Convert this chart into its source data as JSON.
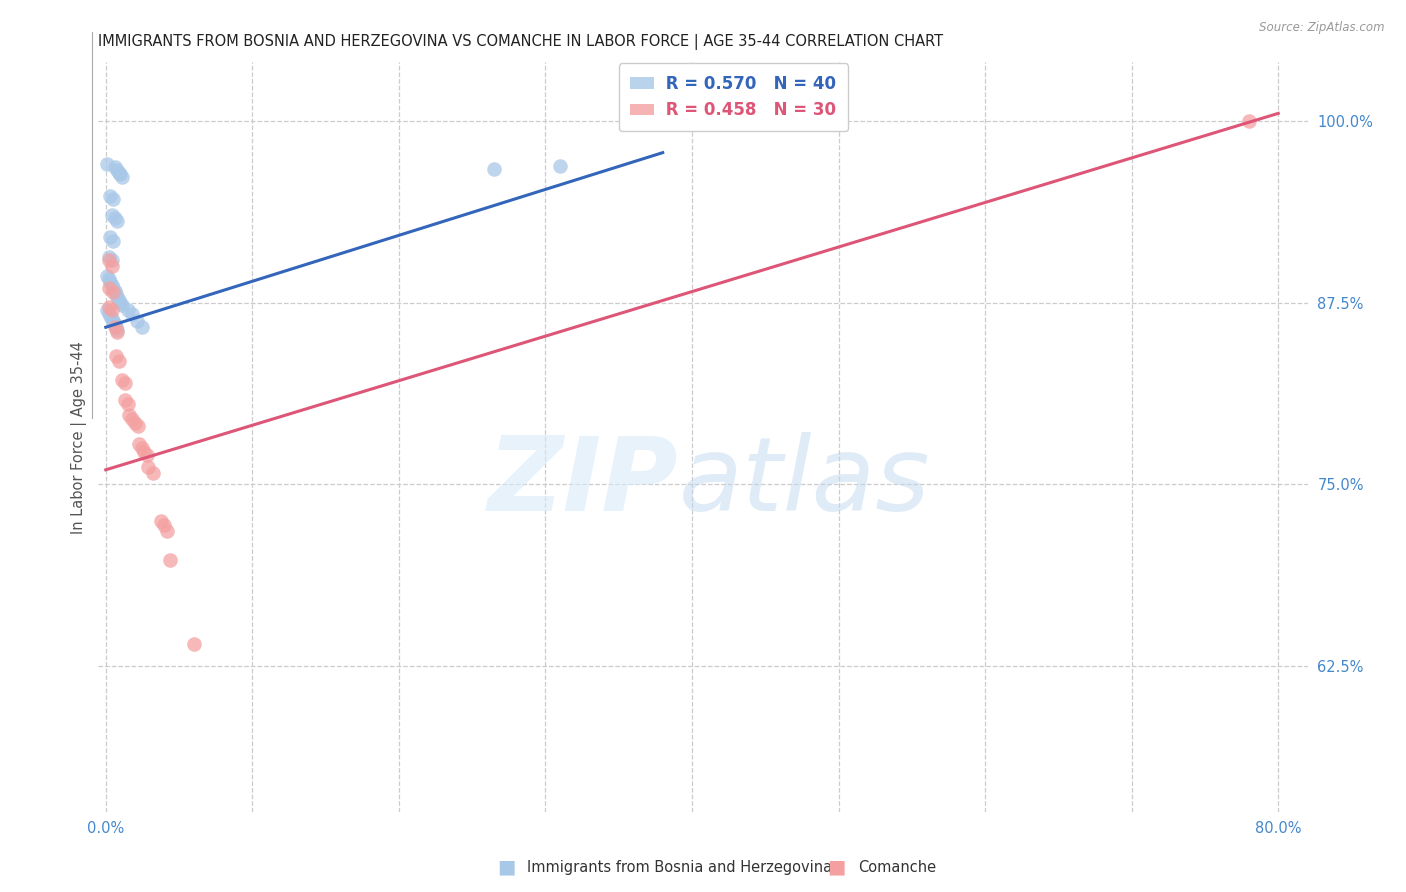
{
  "title": "IMMIGRANTS FROM BOSNIA AND HERZEGOVINA VS COMANCHE IN LABOR FORCE | AGE 35-44 CORRELATION CHART",
  "source": "Source: ZipAtlas.com",
  "ylabel": "In Labor Force | Age 35-44",
  "xlim": [
    -0.005,
    0.82
  ],
  "ylim": [
    0.525,
    1.04
  ],
  "xtick_vals": [
    0.0,
    0.1,
    0.2,
    0.3,
    0.4,
    0.5,
    0.6,
    0.7,
    0.8
  ],
  "xticklabels": [
    "0.0%",
    "",
    "",
    "",
    "",
    "",
    "",
    "",
    "80.0%"
  ],
  "yticks_right": [
    0.625,
    0.75,
    0.875,
    1.0
  ],
  "ytick_right_labels": [
    "62.5%",
    "75.0%",
    "87.5%",
    "100.0%"
  ],
  "legend_blue_r": "R = 0.570",
  "legend_blue_n": "N = 40",
  "legend_pink_r": "R = 0.458",
  "legend_pink_n": "N = 30",
  "legend_blue_label": "Immigrants from Bosnia and Herzegovina",
  "legend_pink_label": "Comanche",
  "blue_color": "#a8c8e8",
  "pink_color": "#f4a0a0",
  "line_blue_color": "#3366bb",
  "line_pink_color": "#dd5577",
  "blue_scatter": [
    [
      0.001,
      0.97
    ],
    [
      0.006,
      0.968
    ],
    [
      0.008,
      0.966
    ],
    [
      0.009,
      0.964
    ],
    [
      0.01,
      0.963
    ],
    [
      0.011,
      0.961
    ],
    [
      0.003,
      0.948
    ],
    [
      0.005,
      0.946
    ],
    [
      0.004,
      0.935
    ],
    [
      0.006,
      0.933
    ],
    [
      0.008,
      0.931
    ],
    [
      0.003,
      0.92
    ],
    [
      0.005,
      0.917
    ],
    [
      0.002,
      0.906
    ],
    [
      0.004,
      0.904
    ],
    [
      0.001,
      0.893
    ],
    [
      0.002,
      0.891
    ],
    [
      0.003,
      0.889
    ],
    [
      0.004,
      0.887
    ],
    [
      0.005,
      0.885
    ],
    [
      0.006,
      0.883
    ],
    [
      0.007,
      0.881
    ],
    [
      0.008,
      0.879
    ],
    [
      0.009,
      0.877
    ],
    [
      0.01,
      0.875
    ],
    [
      0.011,
      0.873
    ],
    [
      0.001,
      0.87
    ],
    [
      0.002,
      0.868
    ],
    [
      0.003,
      0.866
    ],
    [
      0.004,
      0.864
    ],
    [
      0.005,
      0.862
    ],
    [
      0.006,
      0.86
    ],
    [
      0.007,
      0.858
    ],
    [
      0.008,
      0.856
    ],
    [
      0.015,
      0.87
    ],
    [
      0.018,
      0.867
    ],
    [
      0.021,
      0.862
    ],
    [
      0.025,
      0.858
    ],
    [
      0.265,
      0.967
    ],
    [
      0.31,
      0.969
    ]
  ],
  "pink_scatter": [
    [
      0.002,
      0.904
    ],
    [
      0.004,
      0.9
    ],
    [
      0.002,
      0.885
    ],
    [
      0.005,
      0.882
    ],
    [
      0.002,
      0.872
    ],
    [
      0.004,
      0.87
    ],
    [
      0.006,
      0.858
    ],
    [
      0.008,
      0.855
    ],
    [
      0.007,
      0.838
    ],
    [
      0.009,
      0.835
    ],
    [
      0.011,
      0.822
    ],
    [
      0.013,
      0.82
    ],
    [
      0.013,
      0.808
    ],
    [
      0.015,
      0.805
    ],
    [
      0.016,
      0.798
    ],
    [
      0.018,
      0.795
    ],
    [
      0.02,
      0.792
    ],
    [
      0.022,
      0.79
    ],
    [
      0.023,
      0.778
    ],
    [
      0.025,
      0.775
    ],
    [
      0.026,
      0.772
    ],
    [
      0.028,
      0.77
    ],
    [
      0.029,
      0.762
    ],
    [
      0.032,
      0.758
    ],
    [
      0.038,
      0.725
    ],
    [
      0.04,
      0.722
    ],
    [
      0.042,
      0.718
    ],
    [
      0.044,
      0.698
    ],
    [
      0.06,
      0.64
    ],
    [
      0.78,
      1.0
    ]
  ],
  "blue_line_x": [
    0.0,
    0.38
  ],
  "blue_line_y": [
    0.858,
    0.978
  ],
  "pink_line_x": [
    0.0,
    0.8
  ],
  "pink_line_y": [
    0.76,
    1.005
  ],
  "background_color": "#ffffff",
  "grid_color": "#cccccc",
  "title_color": "#222222",
  "axis_color": "#4488cc"
}
